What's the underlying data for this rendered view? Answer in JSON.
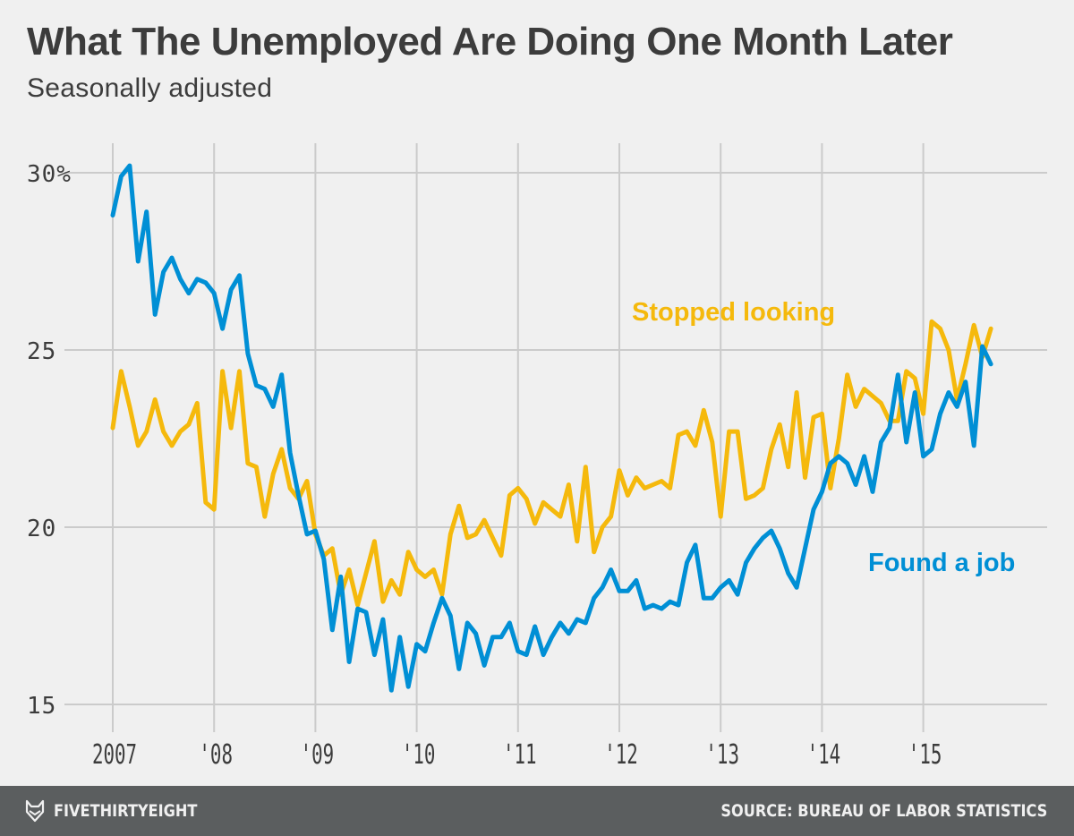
{
  "header": {
    "title": "What The Unemployed Are Doing One Month Later",
    "subtitle": "Seasonally adjusted"
  },
  "footer": {
    "brand": "FIVETHIRTYEIGHT",
    "logo_icon": "fox-head-icon",
    "source": "SOURCE: BUREAU OF LABOR STATISTICS"
  },
  "colors": {
    "background": "#f0f0f0",
    "found_a_job": "#008fd5",
    "stopped_looking": "#f5b90c",
    "grid": "#cbcbcb",
    "text": "#3c3c3c",
    "footer": "#5b5e5f"
  },
  "chart_data": {
    "type": "line",
    "title": "What The Unemployed Are Doing One Month Later",
    "subtitle": "Seasonally adjusted",
    "xlabel": "",
    "ylabel": "",
    "x_start": "2007-01",
    "x_frequency": "monthly",
    "xlim": [
      2007.0,
      2016.0
    ],
    "ylim": [
      14.5,
      30.5
    ],
    "grid": true,
    "y_ticks": [
      15,
      20,
      25,
      30
    ],
    "y_tick_labels": [
      "15",
      "20",
      "25",
      "30%"
    ],
    "x_ticks": [
      2007,
      2008,
      2009,
      2010,
      2011,
      2012,
      2013,
      2014,
      2015
    ],
    "x_tick_labels": [
      "2007",
      "'08",
      "'09",
      "'10",
      "'11",
      "'12",
      "'13",
      "'14",
      "'15"
    ],
    "legend": "inline labels",
    "series": [
      {
        "name": "Found a job",
        "label_position": "right, below series",
        "values": [
          28.8,
          29.9,
          30.2,
          27.5,
          28.9,
          26.0,
          27.2,
          27.6,
          27.0,
          26.6,
          27.0,
          26.9,
          26.6,
          25.6,
          26.7,
          27.1,
          24.9,
          24.0,
          23.9,
          23.4,
          24.3,
          22.1,
          20.9,
          19.8,
          19.9,
          19.1,
          17.1,
          18.6,
          16.2,
          17.7,
          17.6,
          16.4,
          17.4,
          15.4,
          16.9,
          15.5,
          16.7,
          16.5,
          17.3,
          18.0,
          17.5,
          16.0,
          17.3,
          17.0,
          16.1,
          16.9,
          16.9,
          17.3,
          16.5,
          16.4,
          17.2,
          16.4,
          16.9,
          17.3,
          17.0,
          17.4,
          17.3,
          18.0,
          18.3,
          18.8,
          18.2,
          18.2,
          18.5,
          17.7,
          17.8,
          17.7,
          17.9,
          17.8,
          19.0,
          19.5,
          18.0,
          18.0,
          18.3,
          18.5,
          18.1,
          19.0,
          19.4,
          19.7,
          19.9,
          19.4,
          18.7,
          18.3,
          19.4,
          20.5,
          21.0,
          21.8,
          22.0,
          21.8,
          21.2,
          22.0,
          21.0,
          22.4,
          22.8,
          24.3,
          22.4,
          23.8,
          22.0,
          22.2,
          23.2,
          23.8,
          23.4,
          24.1,
          22.3,
          25.1,
          24.6
        ]
      },
      {
        "name": "Stopped looking",
        "label_position": "top, above series",
        "values": [
          22.8,
          24.4,
          23.4,
          22.3,
          22.7,
          23.6,
          22.7,
          22.3,
          22.7,
          22.9,
          23.5,
          20.7,
          20.5,
          24.4,
          22.8,
          24.4,
          21.8,
          21.7,
          20.3,
          21.5,
          22.2,
          21.1,
          20.8,
          21.3,
          19.8,
          19.2,
          19.4,
          18.1,
          18.8,
          17.8,
          18.7,
          19.6,
          17.9,
          18.5,
          18.1,
          19.3,
          18.8,
          18.6,
          18.8,
          18.1,
          19.8,
          20.6,
          19.7,
          19.8,
          20.2,
          19.7,
          19.2,
          20.9,
          21.1,
          20.8,
          20.1,
          20.7,
          20.5,
          20.3,
          21.2,
          19.6,
          21.7,
          19.3,
          20.0,
          20.3,
          21.6,
          20.9,
          21.4,
          21.1,
          21.2,
          21.3,
          21.1,
          22.6,
          22.7,
          22.3,
          23.3,
          22.4,
          20.3,
          22.7,
          22.7,
          20.8,
          20.9,
          21.1,
          22.2,
          22.9,
          21.7,
          23.8,
          21.4,
          23.1,
          23.2,
          21.1,
          22.5,
          24.3,
          23.4,
          23.9,
          23.7,
          23.5,
          23.0,
          23.0,
          24.4,
          24.2,
          23.2,
          25.8,
          25.6,
          25.0,
          23.6,
          24.6,
          25.7,
          24.8,
          25.6
        ]
      }
    ]
  }
}
